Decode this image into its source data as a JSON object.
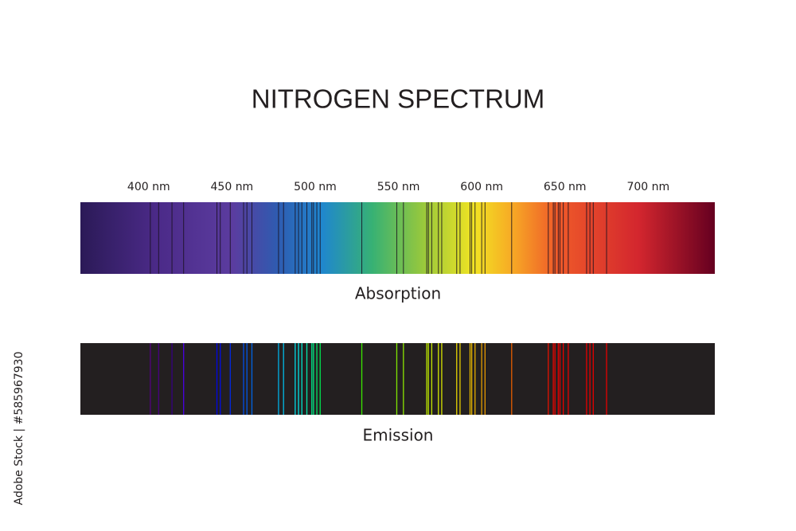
{
  "chart_data": {
    "type": "spectrum",
    "title": "NITROGEN SPECTRUM",
    "xlim": [
      359,
      740
    ],
    "xticks": [
      {
        "value": 400,
        "label": "400 nm"
      },
      {
        "value": 450,
        "label": "450 nm"
      },
      {
        "value": 500,
        "label": "500 nm"
      },
      {
        "value": 550,
        "label": "550 nm"
      },
      {
        "value": 600,
        "label": "600 nm"
      },
      {
        "value": 650,
        "label": "650 nm"
      },
      {
        "value": 700,
        "label": "700 nm"
      }
    ],
    "lines": [
      401,
      406,
      414,
      421,
      441,
      443,
      449,
      457,
      459,
      462,
      478,
      481,
      488,
      490,
      492,
      495,
      498,
      499,
      501,
      503,
      528,
      549,
      553,
      567,
      568,
      570,
      574,
      576,
      585,
      587,
      593,
      594,
      596,
      600,
      602,
      618,
      640,
      643,
      644,
      646,
      647,
      649,
      652,
      663,
      665,
      667,
      675
    ],
    "absorption_label": "Absorption",
    "emission_label": "Emission",
    "side_text": "Adobe Stock | #585967930"
  }
}
